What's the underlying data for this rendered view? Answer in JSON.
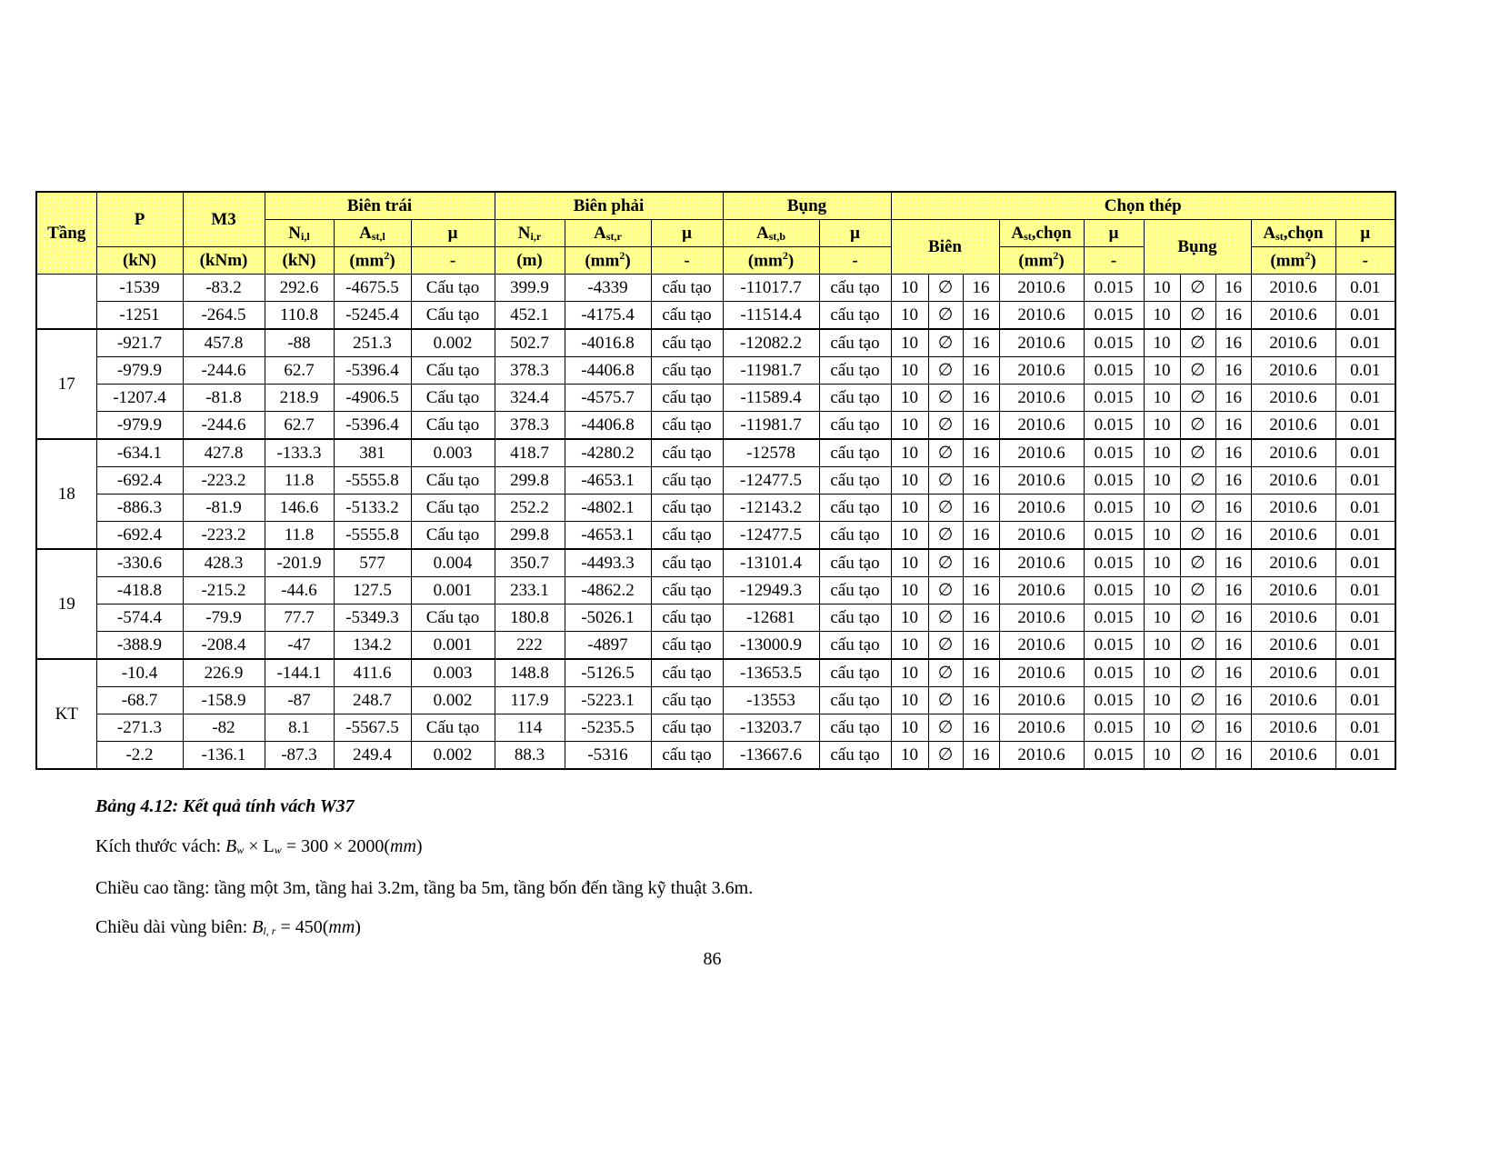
{
  "header": {
    "tang": "Tầng",
    "p": "P",
    "m3": "M3",
    "bien_trai": "Biên trái",
    "bien_phai": "Biên phải",
    "bung": "Bụng",
    "chon_thep": "Chọn thép",
    "n_l": "N",
    "n_l_sub": "i,l",
    "ast_l": "A",
    "ast_l_sub": "st,l",
    "mu": "μ",
    "n_r": "N",
    "n_r_sub": "i,r",
    "ast_r": "A",
    "ast_r_sub": "st,r",
    "ast_b": "A",
    "ast_b_sub": "st,b",
    "bien": "Biên",
    "ast_chon": "A",
    "ast_chon_sub": "st",
    "chon": ",chọn",
    "bung2": "Bụng",
    "unit_kn": "(kN)",
    "unit_knm": "(kNm)",
    "unit_m": "(m)",
    "unit_mm": "(mm",
    "unit_sup": "2",
    "unit_close": ")",
    "dash": "-"
  },
  "groups": [
    {
      "label": "",
      "rows": [
        [
          "-1539",
          "-83.2",
          "292.6",
          "-4675.5",
          "Cấu tạo",
          "399.9",
          "-4339",
          "cấu tạo",
          "-11017.7",
          "cấu tạo",
          "10",
          "∅",
          "16",
          "2010.6",
          "0.015",
          "10",
          "∅",
          "16",
          "2010.6",
          "0.01"
        ],
        [
          "-1251",
          "-264.5",
          "110.8",
          "-5245.4",
          "Cấu tạo",
          "452.1",
          "-4175.4",
          "cấu tạo",
          "-11514.4",
          "cấu tạo",
          "10",
          "∅",
          "16",
          "2010.6",
          "0.015",
          "10",
          "∅",
          "16",
          "2010.6",
          "0.01"
        ]
      ]
    },
    {
      "label": "17",
      "rows": [
        [
          "-921.7",
          "457.8",
          "-88",
          "251.3",
          "0.002",
          "502.7",
          "-4016.8",
          "cấu tạo",
          "-12082.2",
          "cấu tạo",
          "10",
          "∅",
          "16",
          "2010.6",
          "0.015",
          "10",
          "∅",
          "16",
          "2010.6",
          "0.01"
        ],
        [
          "-979.9",
          "-244.6",
          "62.7",
          "-5396.4",
          "Cấu tạo",
          "378.3",
          "-4406.8",
          "cấu tạo",
          "-11981.7",
          "cấu tạo",
          "10",
          "∅",
          "16",
          "2010.6",
          "0.015",
          "10",
          "∅",
          "16",
          "2010.6",
          "0.01"
        ],
        [
          "-1207.4",
          "-81.8",
          "218.9",
          "-4906.5",
          "Cấu tạo",
          "324.4",
          "-4575.7",
          "cấu tạo",
          "-11589.4",
          "cấu tạo",
          "10",
          "∅",
          "16",
          "2010.6",
          "0.015",
          "10",
          "∅",
          "16",
          "2010.6",
          "0.01"
        ],
        [
          "-979.9",
          "-244.6",
          "62.7",
          "-5396.4",
          "Cấu tạo",
          "378.3",
          "-4406.8",
          "cấu tạo",
          "-11981.7",
          "cấu tạo",
          "10",
          "∅",
          "16",
          "2010.6",
          "0.015",
          "10",
          "∅",
          "16",
          "2010.6",
          "0.01"
        ]
      ]
    },
    {
      "label": "18",
      "rows": [
        [
          "-634.1",
          "427.8",
          "-133.3",
          "381",
          "0.003",
          "418.7",
          "-4280.2",
          "cấu tạo",
          "-12578",
          "cấu tạo",
          "10",
          "∅",
          "16",
          "2010.6",
          "0.015",
          "10",
          "∅",
          "16",
          "2010.6",
          "0.01"
        ],
        [
          "-692.4",
          "-223.2",
          "11.8",
          "-5555.8",
          "Cấu tạo",
          "299.8",
          "-4653.1",
          "cấu tạo",
          "-12477.5",
          "cấu tạo",
          "10",
          "∅",
          "16",
          "2010.6",
          "0.015",
          "10",
          "∅",
          "16",
          "2010.6",
          "0.01"
        ],
        [
          "-886.3",
          "-81.9",
          "146.6",
          "-5133.2",
          "Cấu tạo",
          "252.2",
          "-4802.1",
          "cấu tạo",
          "-12143.2",
          "cấu tạo",
          "10",
          "∅",
          "16",
          "2010.6",
          "0.015",
          "10",
          "∅",
          "16",
          "2010.6",
          "0.01"
        ],
        [
          "-692.4",
          "-223.2",
          "11.8",
          "-5555.8",
          "Cấu tạo",
          "299.8",
          "-4653.1",
          "cấu tạo",
          "-12477.5",
          "cấu tạo",
          "10",
          "∅",
          "16",
          "2010.6",
          "0.015",
          "10",
          "∅",
          "16",
          "2010.6",
          "0.01"
        ]
      ]
    },
    {
      "label": "19",
      "rows": [
        [
          "-330.6",
          "428.3",
          "-201.9",
          "577",
          "0.004",
          "350.7",
          "-4493.3",
          "cấu tạo",
          "-13101.4",
          "cấu tạo",
          "10",
          "∅",
          "16",
          "2010.6",
          "0.015",
          "10",
          "∅",
          "16",
          "2010.6",
          "0.01"
        ],
        [
          "-418.8",
          "-215.2",
          "-44.6",
          "127.5",
          "0.001",
          "233.1",
          "-4862.2",
          "cấu tạo",
          "-12949.3",
          "cấu tạo",
          "10",
          "∅",
          "16",
          "2010.6",
          "0.015",
          "10",
          "∅",
          "16",
          "2010.6",
          "0.01"
        ],
        [
          "-574.4",
          "-79.9",
          "77.7",
          "-5349.3",
          "Cấu tạo",
          "180.8",
          "-5026.1",
          "cấu tạo",
          "-12681",
          "cấu tạo",
          "10",
          "∅",
          "16",
          "2010.6",
          "0.015",
          "10",
          "∅",
          "16",
          "2010.6",
          "0.01"
        ],
        [
          "-388.9",
          "-208.4",
          "-47",
          "134.2",
          "0.001",
          "222",
          "-4897",
          "cấu tạo",
          "-13000.9",
          "cấu tạo",
          "10",
          "∅",
          "16",
          "2010.6",
          "0.015",
          "10",
          "∅",
          "16",
          "2010.6",
          "0.01"
        ]
      ]
    },
    {
      "label": "KT",
      "rows": [
        [
          "-10.4",
          "226.9",
          "-144.1",
          "411.6",
          "0.003",
          "148.8",
          "-5126.5",
          "cấu tạo",
          "-13653.5",
          "cấu tạo",
          "10",
          "∅",
          "16",
          "2010.6",
          "0.015",
          "10",
          "∅",
          "16",
          "2010.6",
          "0.01"
        ],
        [
          "-68.7",
          "-158.9",
          "-87",
          "248.7",
          "0.002",
          "117.9",
          "-5223.1",
          "cấu tạo",
          "-13553",
          "cấu tạo",
          "10",
          "∅",
          "16",
          "2010.6",
          "0.015",
          "10",
          "∅",
          "16",
          "2010.6",
          "0.01"
        ],
        [
          "-271.3",
          "-82",
          "8.1",
          "-5567.5",
          "Cấu tạo",
          "114",
          "-5235.5",
          "cấu tạo",
          "-13203.7",
          "cấu tạo",
          "10",
          "∅",
          "16",
          "2010.6",
          "0.015",
          "10",
          "∅",
          "16",
          "2010.6",
          "0.01"
        ],
        [
          "-2.2",
          "-136.1",
          "-87.3",
          "249.4",
          "0.002",
          "88.3",
          "-5316",
          "cấu tạo",
          "-13667.6",
          "cấu tạo",
          "10",
          "∅",
          "16",
          "2010.6",
          "0.015",
          "10",
          "∅",
          "16",
          "2010.6",
          "0.01"
        ]
      ]
    }
  ],
  "caption": "Bảng 4.12:   Kết quả tính vách W37",
  "line1": {
    "label": "Kích thước vách: ",
    "formula": "B",
    "sub1": "w",
    "times": " × L",
    "sub2": "w",
    "rest": " = 300 × 2000(",
    "unit": "mm",
    "close": ")"
  },
  "line2": "Chiều cao tầng: tầng một 3m, tầng hai 3.2m, tầng ba 5m, tầng bốn đến tầng kỹ thuật 3.6m.",
  "line3": {
    "label": "Chiều dài vùng biên: ",
    "formula": "B",
    "sub": "l, r",
    "rest": " = 450(",
    "unit": "mm",
    "close": ")"
  },
  "page_number": "86",
  "colors": {
    "header_bg": "#ffff80"
  }
}
